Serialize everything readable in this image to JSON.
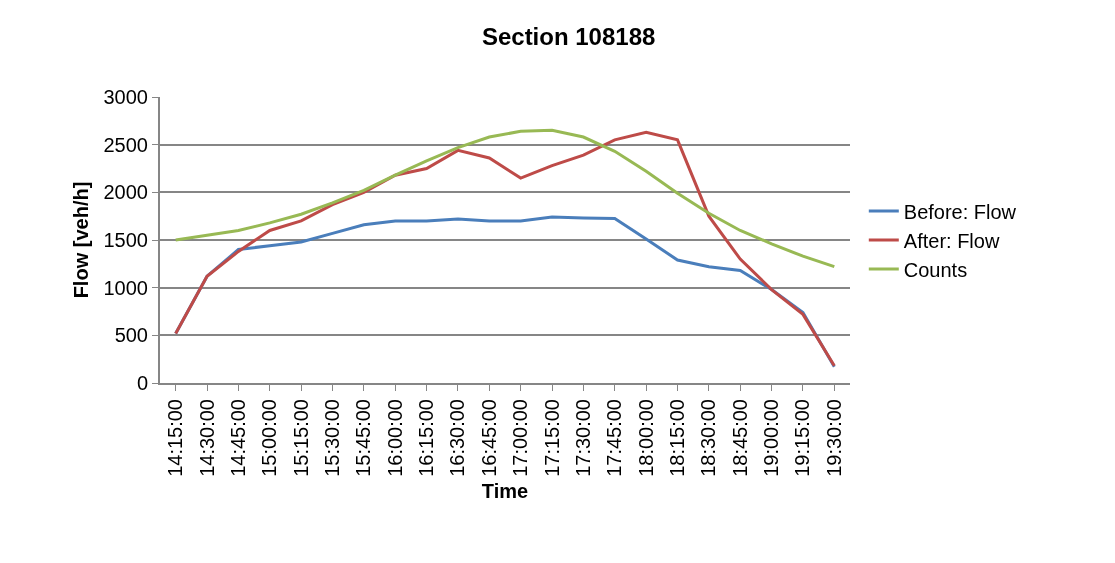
{
  "chart_data": {
    "type": "line",
    "title": "Section 108188",
    "xlabel": "Time",
    "ylabel": "Flow [veh/h]",
    "categories": [
      "14:15:00",
      "14:30:00",
      "14:45:00",
      "15:00:00",
      "15:15:00",
      "15:30:00",
      "15:45:00",
      "16:00:00",
      "16:15:00",
      "16:30:00",
      "16:45:00",
      "17:00:00",
      "17:15:00",
      "17:30:00",
      "17:45:00",
      "18:00:00",
      "18:15:00",
      "18:30:00",
      "18:45:00",
      "19:00:00",
      "19:15:00",
      "19:30:00"
    ],
    "series": [
      {
        "name": "Before: Flow",
        "color": "#4a7ebb",
        "values": [
          520,
          1120,
          1400,
          1440,
          1480,
          1570,
          1660,
          1700,
          1700,
          1720,
          1700,
          1700,
          1740,
          1730,
          1725,
          1510,
          1290,
          1220,
          1180,
          980,
          740,
          170
        ]
      },
      {
        "name": "After: Flow",
        "color": "#be4b48",
        "values": [
          520,
          1120,
          1380,
          1600,
          1700,
          1870,
          2000,
          2180,
          2250,
          2440,
          2360,
          2150,
          2280,
          2390,
          2550,
          2630,
          2550,
          1750,
          1300,
          980,
          720,
          180
        ]
      },
      {
        "name": "Counts",
        "color": "#98b954",
        "values": [
          1500,
          1550,
          1600,
          1680,
          1770,
          1890,
          2020,
          2180,
          2330,
          2470,
          2580,
          2640,
          2650,
          2580,
          2430,
          2220,
          1990,
          1780,
          1600,
          1460,
          1330,
          1220
        ]
      }
    ],
    "ylim": [
      0,
      3000
    ],
    "yticks": [
      0,
      500,
      1000,
      1500,
      2000,
      2500,
      3000
    ],
    "grid": "y",
    "legend": "right",
    "marker": "none",
    "line_style": "solid"
  }
}
